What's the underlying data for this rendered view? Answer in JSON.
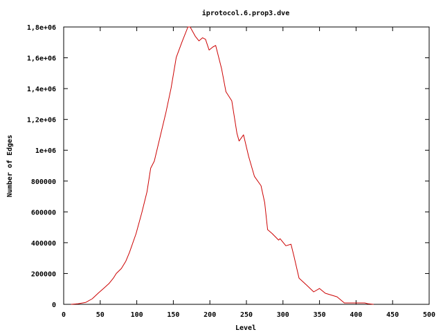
{
  "chart_data": {
    "type": "line",
    "title": "iprotocol.6.prop3.dve",
    "xlabel": "Level",
    "ylabel": "Number of Edges",
    "xlim": [
      0,
      500
    ],
    "ylim": [
      0,
      1800000
    ],
    "grid": false,
    "legend": "none",
    "x_ticks": [
      {
        "value": 0,
        "label": "0"
      },
      {
        "value": 50,
        "label": "50"
      },
      {
        "value": 100,
        "label": "100"
      },
      {
        "value": 150,
        "label": "150"
      },
      {
        "value": 200,
        "label": "200"
      },
      {
        "value": 250,
        "label": "250"
      },
      {
        "value": 300,
        "label": "300"
      },
      {
        "value": 350,
        "label": "350"
      },
      {
        "value": 400,
        "label": "400"
      },
      {
        "value": 450,
        "label": "450"
      },
      {
        "value": 500,
        "label": "500"
      }
    ],
    "y_ticks": [
      {
        "value": 0,
        "label": "0"
      },
      {
        "value": 200000,
        "label": "200000"
      },
      {
        "value": 400000,
        "label": "400000"
      },
      {
        "value": 600000,
        "label": "600000"
      },
      {
        "value": 800000,
        "label": "800000"
      },
      {
        "value": 1000000,
        "label": "1e+06"
      },
      {
        "value": 1200000,
        "label": "1,2e+06"
      },
      {
        "value": 1400000,
        "label": "1,4e+06"
      },
      {
        "value": 1600000,
        "label": "1,6e+06"
      },
      {
        "value": 1800000,
        "label": "1,8e+06"
      }
    ],
    "series": [
      {
        "color": "#cc0000",
        "x": [
          10,
          20,
          30,
          39,
          48,
          55,
          62,
          68,
          72,
          79,
          85,
          90,
          99,
          107,
          114,
          119,
          124,
          133,
          140,
          147,
          154,
          162,
          170,
          173,
          180,
          185,
          190,
          194,
          199,
          204,
          208,
          216,
          222,
          230,
          237,
          240,
          246,
          253,
          261,
          270,
          275,
          279,
          285,
          294,
          296,
          304,
          311,
          315,
          322,
          332,
          342,
          350,
          358,
          374,
          384,
          400,
          412,
          416,
          424
        ],
        "y": [
          0,
          4000,
          12000,
          36000,
          76000,
          105000,
          135000,
          170000,
          200000,
          233000,
          280000,
          336000,
          458000,
          597000,
          731000,
          884000,
          929000,
          1108000,
          1247000,
          1404000,
          1602000,
          1705000,
          1800000,
          1800000,
          1740000,
          1710000,
          1730000,
          1720000,
          1650000,
          1670000,
          1680000,
          1530000,
          1380000,
          1320000,
          1110000,
          1060000,
          1100000,
          960000,
          830000,
          770000,
          660000,
          485000,
          460000,
          417000,
          426000,
          380000,
          390000,
          314000,
          170000,
          126000,
          81000,
          103000,
          72000,
          49000,
          9000,
          9000,
          9000,
          4000,
          0
        ]
      }
    ]
  }
}
